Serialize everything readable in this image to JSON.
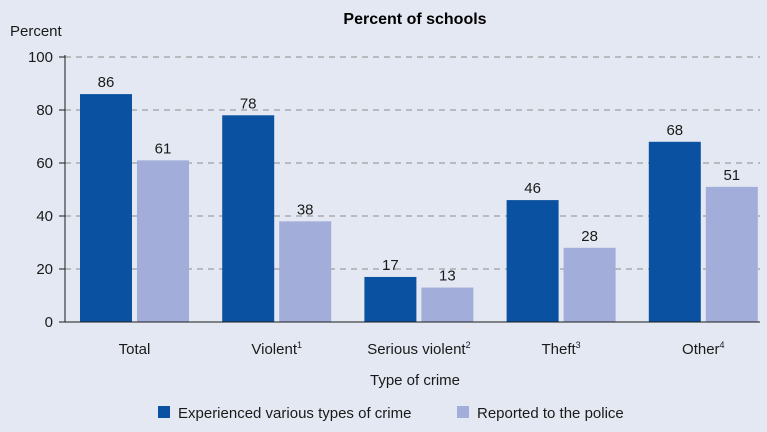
{
  "chart_data": {
    "type": "bar",
    "title": "Percent of schools",
    "ylabel": "Percent",
    "xlabel": "Type of crime",
    "ylim": [
      0,
      100
    ],
    "yticks": [
      0,
      20,
      40,
      60,
      80,
      100
    ],
    "grid": true,
    "categories": [
      "Total",
      "Violent",
      "Serious violent",
      "Theft",
      "Other"
    ],
    "category_superscripts": [
      "",
      "1",
      "2",
      "3",
      "4"
    ],
    "series": [
      {
        "name": "Experienced various types of crime",
        "values": [
          86,
          78,
          17,
          46,
          68
        ],
        "color": "#0a52a1"
      },
      {
        "name": "Reported to the police",
        "values": [
          61,
          38,
          13,
          28,
          51
        ],
        "color": "#a2aed9"
      }
    ],
    "legend_position": "bottom-center",
    "background_color": "#e3e8f2"
  }
}
